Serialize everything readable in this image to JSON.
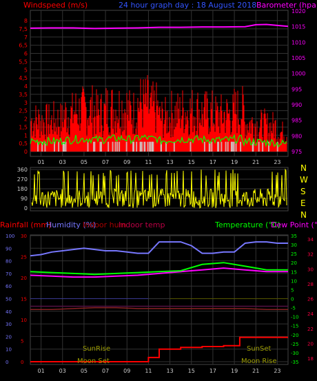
{
  "header": {
    "left_title": "Windspeed (m/s)",
    "center_title": "24 hour graph day : 18 August 2018",
    "right_title": "Barometer (hpa)"
  },
  "direction_labels": [
    "N",
    "W",
    "S",
    "E",
    "N"
  ],
  "lower_header": {
    "rain": "Rainfall (mm)",
    "humidity": "Humidity (%)",
    "indoor_hum": "Indoor hum",
    "indoor_temp": "Indoor temp",
    "temperature": "Temperature (°C)",
    "dew_point": "Dew Point (°C)"
  },
  "annotations": {
    "sunrise": "SunRise",
    "sunset": "SunSet",
    "moonset": "Moon Set",
    "moonrise": "Moon Rise"
  },
  "colors": {
    "wind": "#ff0000",
    "gust_green": "#00ff00",
    "baro": "#ff00ff",
    "winddir": "#ffff00",
    "humidity": "#7777ff",
    "temp": "#00ff00",
    "dew": "#ff00ff",
    "rain": "#ff0000",
    "sun_moon_text": "#9a9a00"
  },
  "chart_data": [
    {
      "type": "bar",
      "title": "24 hour graph day : 18 August 2018",
      "ylabel": "Windspeed (m/s)",
      "y2label": "Barometer (hpa)",
      "ylim": [
        0,
        8
      ],
      "y2lim": [
        975,
        1020
      ],
      "x_ticks": [
        "01",
        "03",
        "05",
        "07",
        "09",
        "11",
        "13",
        "15",
        "17",
        "19",
        "21",
        "23"
      ],
      "y_ticks": [
        "0",
        "0,5",
        "1",
        "1,5",
        "2",
        "2,5",
        "3",
        "3,5",
        "4",
        "4,5",
        "5",
        "5,5",
        "6",
        "6,5",
        "7",
        "7,5",
        "8"
      ],
      "y2_ticks": [
        "975",
        "980",
        "985",
        "990",
        "995",
        "1000",
        "1005",
        "1010",
        "1015",
        "1020"
      ],
      "series": [
        {
          "name": "Windspeed (m/s)",
          "x": [
            0,
            1,
            2,
            3,
            4,
            5,
            6,
            7,
            8,
            9,
            10,
            11,
            12,
            13,
            14,
            15,
            16,
            17,
            18,
            19,
            20,
            21,
            22,
            23
          ],
          "values": [
            2.6,
            2.5,
            2.6,
            3.1,
            3.4,
            3.5,
            3.2,
            3.6,
            3.7,
            3.3,
            4.0,
            3.6,
            2.8,
            3.2,
            3.4,
            3.4,
            3.2,
            3.0,
            3.1,
            3.4,
            2.4,
            2.2,
            2.1,
            1.6
          ]
        },
        {
          "name": "Barometer (hpa)",
          "x": [
            0,
            2,
            4,
            6,
            8,
            10,
            12,
            14,
            16,
            18,
            20,
            21,
            22,
            23,
            24
          ],
          "values": [
            1014.5,
            1014.6,
            1014.6,
            1014.4,
            1014.5,
            1014.6,
            1014.8,
            1014.8,
            1014.9,
            1014.9,
            1015.0,
            1015.6,
            1015.7,
            1015.4,
            1015.1
          ]
        }
      ]
    },
    {
      "type": "scatter",
      "title": "",
      "ylabel": "",
      "ylim": [
        0,
        360
      ],
      "y_ticks": [
        "0",
        "90",
        "180",
        "270",
        "360"
      ],
      "series": [
        {
          "name": "",
          "x": [
            0,
            2,
            4,
            6,
            8,
            10,
            12,
            14,
            16,
            18,
            20,
            22,
            24
          ],
          "values": [
            30,
            120,
            80,
            200,
            60,
            150,
            90,
            170,
            70,
            110,
            40,
            130,
            60
          ]
        }
      ]
    },
    {
      "type": "line",
      "title": "",
      "ylabel": "Humidity (%)",
      "y2label": "Temperature (°C)",
      "ylim": [
        0,
        100
      ],
      "y2lim": [
        -35,
        35
      ],
      "y_ticks": [
        "0",
        "10",
        "20",
        "30",
        "40",
        "50",
        "60",
        "70",
        "80",
        "90",
        "100"
      ],
      "rain_ticks": [
        "0",
        "5",
        "10",
        "15",
        "20",
        "25",
        "30"
      ],
      "temp_ticks": [
        "-35",
        "-30",
        "-25",
        "-20",
        "-15",
        "-10",
        "-5",
        "0",
        "5",
        "10",
        "15",
        "20",
        "25",
        "30",
        "35"
      ],
      "dew_ticks": [
        "18",
        "20",
        "22",
        "24",
        "26",
        "28",
        "30",
        "32",
        "34"
      ],
      "x_ticks": [
        "01",
        "03",
        "05",
        "07",
        "09",
        "11",
        "13",
        "15",
        "17",
        "19",
        "21",
        "23"
      ],
      "series": [
        {
          "name": "Humidity (%)",
          "x": [
            0,
            1,
            2,
            3,
            4,
            5,
            6,
            7,
            8,
            9,
            10,
            11,
            12,
            13,
            14,
            15,
            16,
            17,
            18,
            19,
            20,
            21,
            22,
            23,
            24
          ],
          "values": [
            84,
            85,
            87,
            88,
            89,
            90,
            89,
            88,
            88,
            87,
            86,
            86,
            95,
            95,
            95,
            92,
            86,
            86,
            87,
            87,
            94,
            95,
            95,
            94,
            94
          ]
        },
        {
          "name": "Temperature (°C)",
          "x": [
            0,
            2,
            4,
            6,
            8,
            10,
            12,
            14,
            16,
            18,
            20,
            22,
            24
          ],
          "values": [
            15,
            14.5,
            14,
            13.5,
            14,
            14.5,
            15,
            15.5,
            19,
            20,
            18,
            16,
            16
          ]
        },
        {
          "name": "Dew Point (°C)",
          "x": [
            0,
            2,
            4,
            6,
            8,
            10,
            12,
            14,
            16,
            18,
            20,
            22,
            24
          ],
          "values": [
            13,
            12.5,
            12,
            12,
            12.5,
            13,
            14,
            15,
            16,
            17,
            16,
            15,
            15
          ]
        },
        {
          "name": "Indoor hum",
          "x": [
            0,
            2,
            4,
            6,
            8,
            10,
            12,
            14,
            16,
            18,
            20,
            22,
            24
          ],
          "values": [
            44,
            44,
            44,
            44,
            44,
            44,
            44,
            44,
            44,
            44,
            44,
            44,
            44
          ]
        },
        {
          "name": "Indoor temp",
          "x": [
            0,
            2,
            4,
            6,
            8,
            10,
            12,
            14,
            16,
            18,
            20,
            22,
            24
          ],
          "values": [
            -6,
            -6,
            -5.5,
            -5,
            -5,
            -5.5,
            -5.5,
            -5.5,
            -5.5,
            -5.5,
            -5.5,
            -6,
            -6
          ]
        },
        {
          "name": "Rainfall (mm)",
          "x": [
            0,
            10,
            11,
            12,
            14,
            16,
            18,
            19,
            19.5,
            24
          ],
          "values": [
            0,
            0,
            1,
            3,
            3.4,
            3.6,
            3.8,
            3.8,
            5.8,
            5.8
          ]
        }
      ]
    }
  ]
}
